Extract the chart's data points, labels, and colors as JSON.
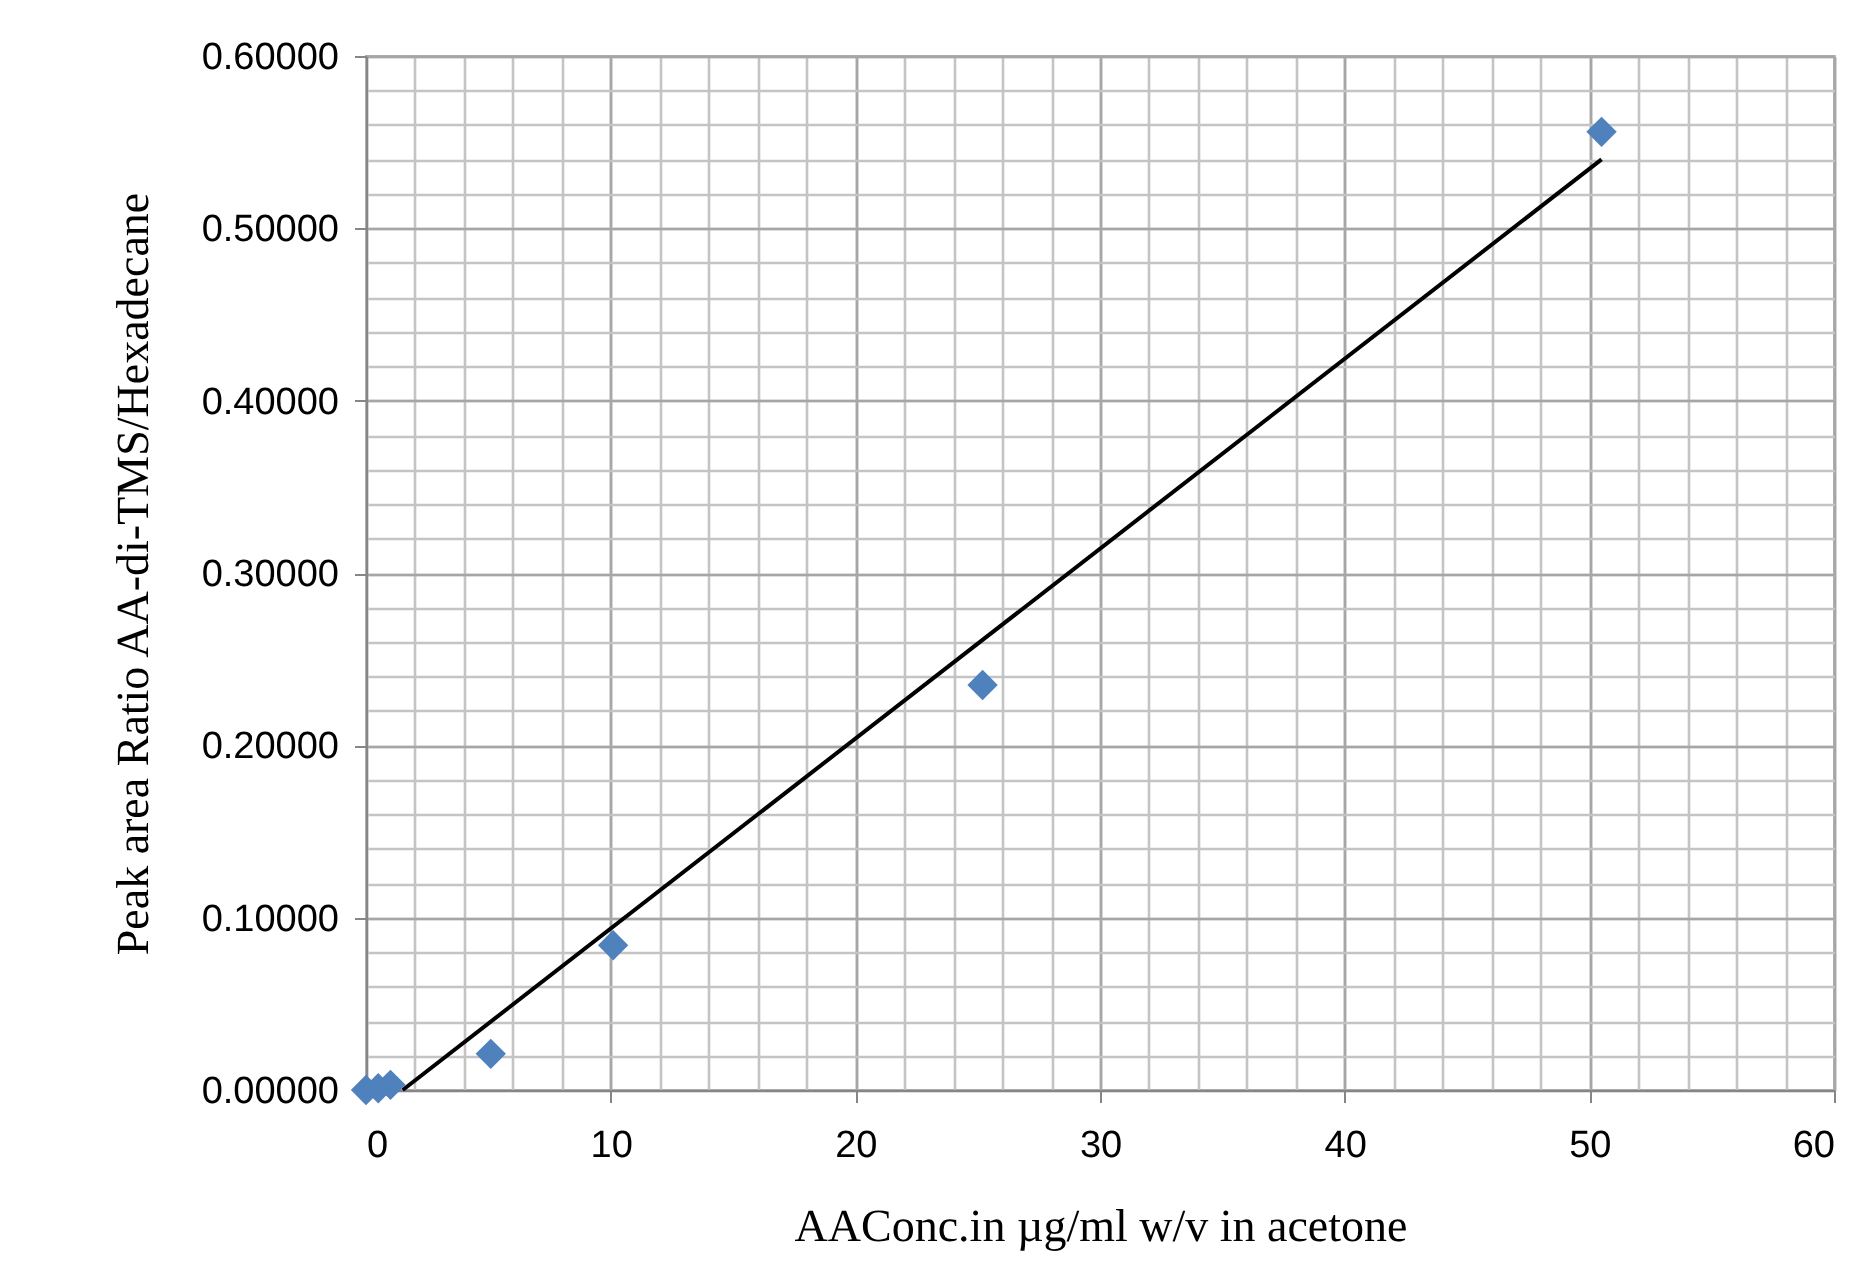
{
  "chart_data": {
    "type": "scatter",
    "xlabel": "AAConc.in µg/ml w/v in acetone",
    "ylabel": "Peak area Ratio AA-di-TMS/Hexadecane",
    "x": [
      0,
      0.5,
      1,
      5.1,
      10.1,
      25.2,
      50.5
    ],
    "series": [
      {
        "color": "#4f81bd",
        "marker": "diamond",
        "values": [
          0,
          0.001,
          0.003,
          0.021,
          0.084,
          0.235,
          0.556
        ]
      },
      {
        "type": "line",
        "color": "#000000",
        "marker": "none",
        "x": [
          1.5,
          50.5
        ],
        "values": [
          0,
          0.54
        ]
      }
    ],
    "xlim": [
      0,
      60
    ],
    "xticks": [
      0,
      10,
      20,
      30,
      40,
      50,
      60
    ],
    "ylim": [
      0,
      0.6
    ],
    "yticks": [
      {
        "value": 0,
        "label": "0.00000"
      },
      {
        "value": 0.1,
        "label": "0.10000"
      },
      {
        "value": 0.2,
        "label": "0.20000"
      },
      {
        "value": 0.3,
        "label": "0.30000"
      },
      {
        "value": 0.4,
        "label": "0.40000"
      },
      {
        "value": 0.5,
        "label": "0.50000"
      },
      {
        "value": 0.6,
        "label": "0.60000"
      }
    ],
    "grid": true
  }
}
